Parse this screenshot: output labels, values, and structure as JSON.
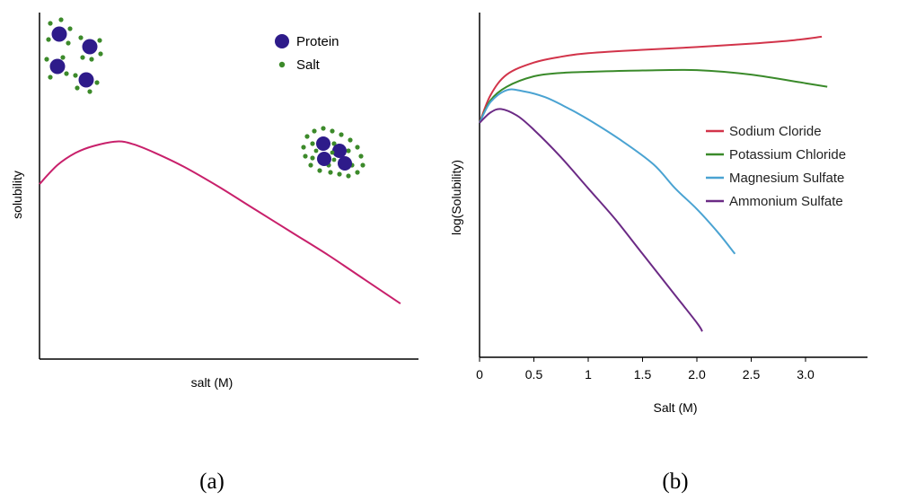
{
  "chart_data": [
    {
      "type": "line",
      "panel_label": "(a)",
      "xlabel": "salt (M)",
      "ylabel": "solubility",
      "series": [
        {
          "color": "#c8206b",
          "x": [
            0,
            0.5,
            1,
            1.5,
            2.15,
            2.6,
            3.2,
            4,
            5,
            6,
            7,
            8,
            9,
            10
          ],
          "y": [
            5.05,
            5.6,
            5.95,
            6.15,
            6.28,
            6.2,
            5.95,
            5.55,
            4.95,
            4.3,
            3.65,
            3.0,
            2.3,
            1.6
          ]
        }
      ],
      "legend": [
        {
          "label": "Protein",
          "marker": "large-dark-blue-circle"
        },
        {
          "label": "Salt",
          "marker": "small-green-dot"
        }
      ],
      "xlim": [
        0,
        10.5
      ],
      "ylim": [
        0,
        10
      ]
    },
    {
      "type": "line",
      "panel_label": "(b)",
      "xlabel": "Salt (M)",
      "ylabel": "log(Solubility)",
      "x_ticks": [
        "0",
        "0.5",
        "1",
        "1.5",
        "2.0",
        "2.5",
        "3.0"
      ],
      "xlim": [
        0,
        3.5
      ],
      "ylim": [
        0,
        10
      ],
      "legend_position": "right",
      "series": [
        {
          "name": "Sodium Cloride",
          "color": "#d2344a",
          "x": [
            0,
            0.1,
            0.25,
            0.5,
            0.75,
            1.0,
            1.5,
            2.0,
            2.5,
            2.9,
            3.15
          ],
          "y": [
            6.8,
            7.6,
            8.2,
            8.55,
            8.72,
            8.82,
            8.92,
            9.0,
            9.1,
            9.2,
            9.3
          ]
        },
        {
          "name": "Potassium Chloride",
          "color": "#3a8a2a",
          "x": [
            0,
            0.1,
            0.25,
            0.5,
            0.75,
            1.0,
            1.5,
            2.0,
            2.5,
            3.0,
            3.2
          ],
          "y": [
            6.8,
            7.45,
            7.85,
            8.15,
            8.25,
            8.28,
            8.32,
            8.33,
            8.2,
            7.95,
            7.85
          ]
        },
        {
          "name": "Magnesium Sulfate",
          "color": "#4aa3d2",
          "x": [
            0,
            0.1,
            0.25,
            0.4,
            0.6,
            0.8,
            1.0,
            1.3,
            1.6,
            1.8,
            2.0,
            2.2,
            2.35
          ],
          "y": [
            6.8,
            7.4,
            7.75,
            7.72,
            7.55,
            7.25,
            6.9,
            6.3,
            5.6,
            4.9,
            4.3,
            3.6,
            3.0
          ]
        },
        {
          "name": "Ammonium Sulfate",
          "color": "#6b2a85",
          "x": [
            0,
            0.1,
            0.2,
            0.35,
            0.5,
            0.75,
            1.0,
            1.25,
            1.5,
            1.75,
            2.0,
            2.05
          ],
          "y": [
            6.8,
            7.1,
            7.2,
            7.0,
            6.6,
            5.8,
            4.9,
            4.0,
            3.0,
            2.0,
            1.0,
            0.75
          ]
        }
      ]
    }
  ]
}
